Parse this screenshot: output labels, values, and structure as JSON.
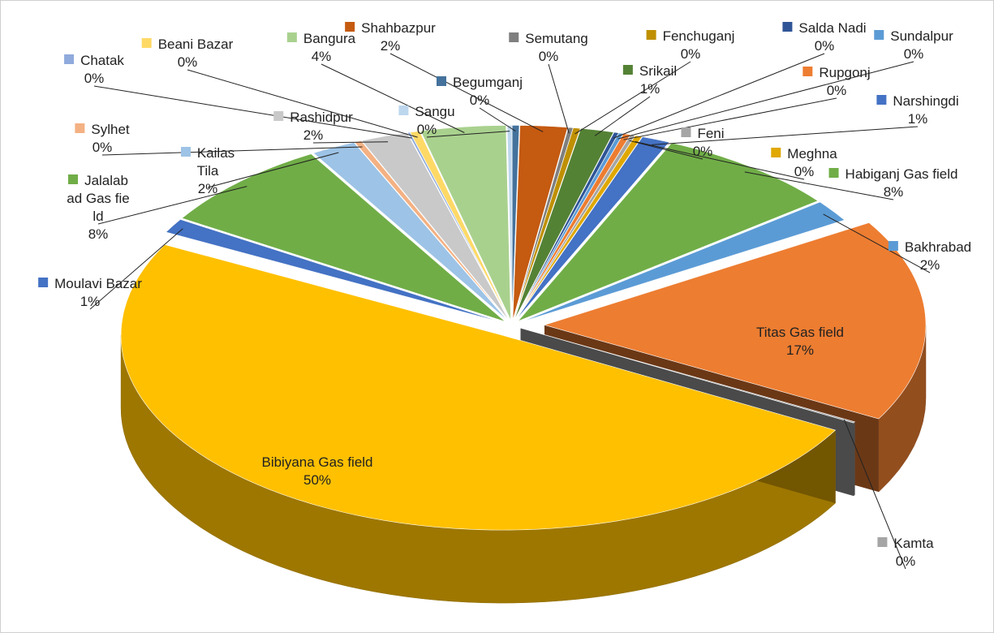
{
  "chart_data": {
    "type": "pie",
    "categories": [
      "Begumganj",
      "Shahbazpur",
      "Semutang",
      "Fenchuganj",
      "Srikail",
      "Salda Nadi",
      "Sundalpur",
      "Rupgonj",
      "Feni",
      "Meghna",
      "Narshingdi",
      "Habiganj Gas field",
      "Bakhrabad",
      "Titas Gas field",
      "Kamta",
      "Bibiyana Gas field",
      "Moulavi Bazar",
      "Jalalabad Gas field",
      "Kailas Tila",
      "Sylhet",
      "Rashidpur",
      "Chatak",
      "Beani Bazar",
      "Bangura",
      "Sangu"
    ],
    "values": [
      0.3,
      2.0,
      0.2,
      0.3,
      1.4,
      0.2,
      0.2,
      0.3,
      0.2,
      0.3,
      1.2,
      7.8,
      1.8,
      16.8,
      0.1,
      49.6,
      1.2,
      7.6,
      1.9,
      0.3,
      2.0,
      0.1,
      0.4,
      3.6,
      0.2
    ],
    "value_labels": [
      "0%",
      "2%",
      "0%",
      "0%",
      "1%",
      "0%",
      "0%",
      "0%",
      "0%",
      "0%",
      "1%",
      "8%",
      "2%",
      "17%",
      "0%",
      "50%",
      "1%",
      "8%",
      "2%",
      "0%",
      "2%",
      "0%",
      "0%",
      "4%",
      "0%"
    ],
    "colors": [
      "#44729c",
      "#c55a11",
      "#7f7f7f",
      "#bf9000",
      "#548235",
      "#2f5597",
      "#5b9bd5",
      "#ed7d31",
      "#a5a5a5",
      "#e0a800",
      "#4472c4",
      "#70ad47",
      "#5b9bd5",
      "#ed7d31",
      "#a5a5a5",
      "#ffc000",
      "#4472c4",
      "#70ad47",
      "#9dc3e6",
      "#f4b183",
      "#c9c9c9",
      "#8faadc",
      "#ffd966",
      "#a9d18e",
      "#bdd7ee"
    ]
  }
}
